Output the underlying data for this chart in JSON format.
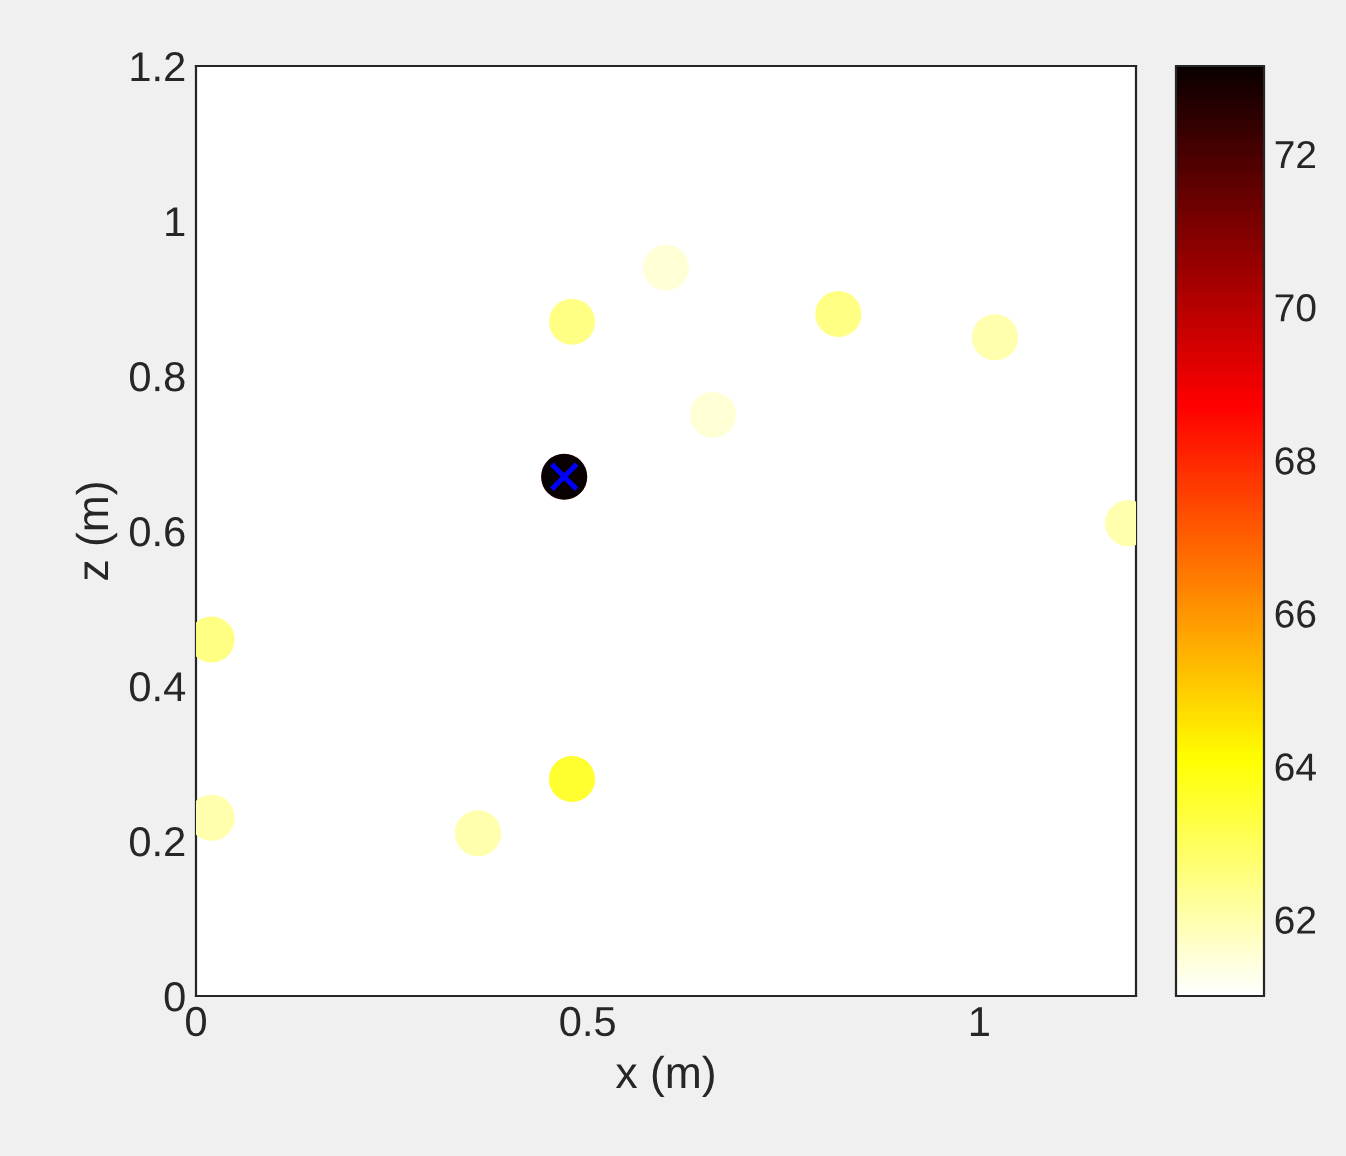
{
  "chart_data": {
    "type": "scatter",
    "xlabel": "x (m)",
    "ylabel": "z (m)",
    "xlim": [
      0,
      1.2
    ],
    "xticks": [
      0,
      0.5,
      1
    ],
    "ylim": [
      0,
      1.2
    ],
    "yticks": [
      0,
      0.2,
      0.4,
      0.6,
      0.8,
      1,
      1.2
    ],
    "clim": [
      61,
      73.15
    ],
    "cticks": [
      62,
      64,
      66,
      68,
      70,
      72
    ],
    "marker": "circle",
    "series": [
      {
        "x": [
          0.47,
          0.48,
          0.48,
          0.82,
          1.02,
          0.6,
          0.66,
          1.19,
          0.02,
          0.02,
          0.36
        ],
        "values": [
          0.67,
          0.28,
          0.87,
          0.88,
          0.85,
          0.94,
          0.75,
          0.61,
          0.46,
          0.23,
          0.21
        ],
        "cvalues": [
          73,
          63.5,
          62.5,
          62.5,
          62,
          61.5,
          61.5,
          62,
          62.5,
          62,
          62
        ],
        "colors": [
          "#090000",
          "#ffff30",
          "#ffff84",
          "#ffff84",
          "#ffffad",
          "#ffffd6",
          "#ffffd6",
          "#ffffad",
          "#ffff84",
          "#ffffad",
          "#ffffad"
        ]
      },
      {
        "x": [
          0.47
        ],
        "values": [
          0.67
        ],
        "color": "#0000ff",
        "marker": "cross"
      }
    ]
  }
}
